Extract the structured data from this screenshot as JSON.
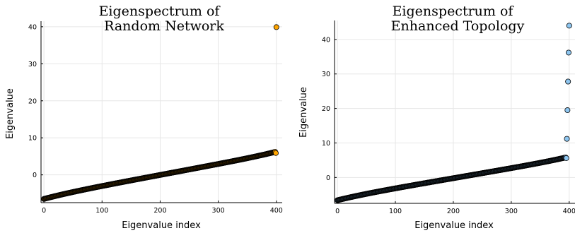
{
  "chart_data": [
    {
      "type": "scatter",
      "title_lines": [
        "Eigenspectrum of",
        "Random Network"
      ],
      "xlabel": "Eigenvalue index",
      "ylabel": "Eigenvalue",
      "xlim": [
        -5,
        410
      ],
      "ylim": [
        -7.5,
        41.5
      ],
      "xticks": [
        0,
        100,
        200,
        300,
        400
      ],
      "yticks": [
        0,
        10,
        20,
        30,
        40
      ],
      "grid": true,
      "legend": "none",
      "marker_color": "#ffa500",
      "bulk": {
        "count": 399,
        "x_start": 0,
        "x_end": 398,
        "y_start": -5.9,
        "y_end": 5.8
      },
      "outliers": [
        {
          "x": 399,
          "y": 5.9
        },
        {
          "x": 400,
          "y": 39.9
        }
      ]
    },
    {
      "type": "scatter",
      "title_lines": [
        "Eigenspectrum of",
        "Enhanced Topology"
      ],
      "xlabel": "Eigenvalue index",
      "ylabel": "Eigenvalue",
      "xlim": [
        -5,
        410
      ],
      "ylim": [
        -7.5,
        45.5
      ],
      "xticks": [
        0,
        100,
        200,
        300,
        400
      ],
      "yticks": [
        0,
        10,
        20,
        30,
        40
      ],
      "grid": true,
      "legend": "none",
      "marker_color": "#8ec6f0",
      "bulk": {
        "count": 395,
        "x_start": 0,
        "x_end": 394,
        "y_start": -6.0,
        "y_end": 5.4
      },
      "outliers": [
        {
          "x": 395,
          "y": 5.6
        },
        {
          "x": 396,
          "y": 11.2
        },
        {
          "x": 397,
          "y": 19.5
        },
        {
          "x": 398,
          "y": 27.8
        },
        {
          "x": 399,
          "y": 36.2
        },
        {
          "x": 400,
          "y": 44.0
        }
      ]
    }
  ]
}
